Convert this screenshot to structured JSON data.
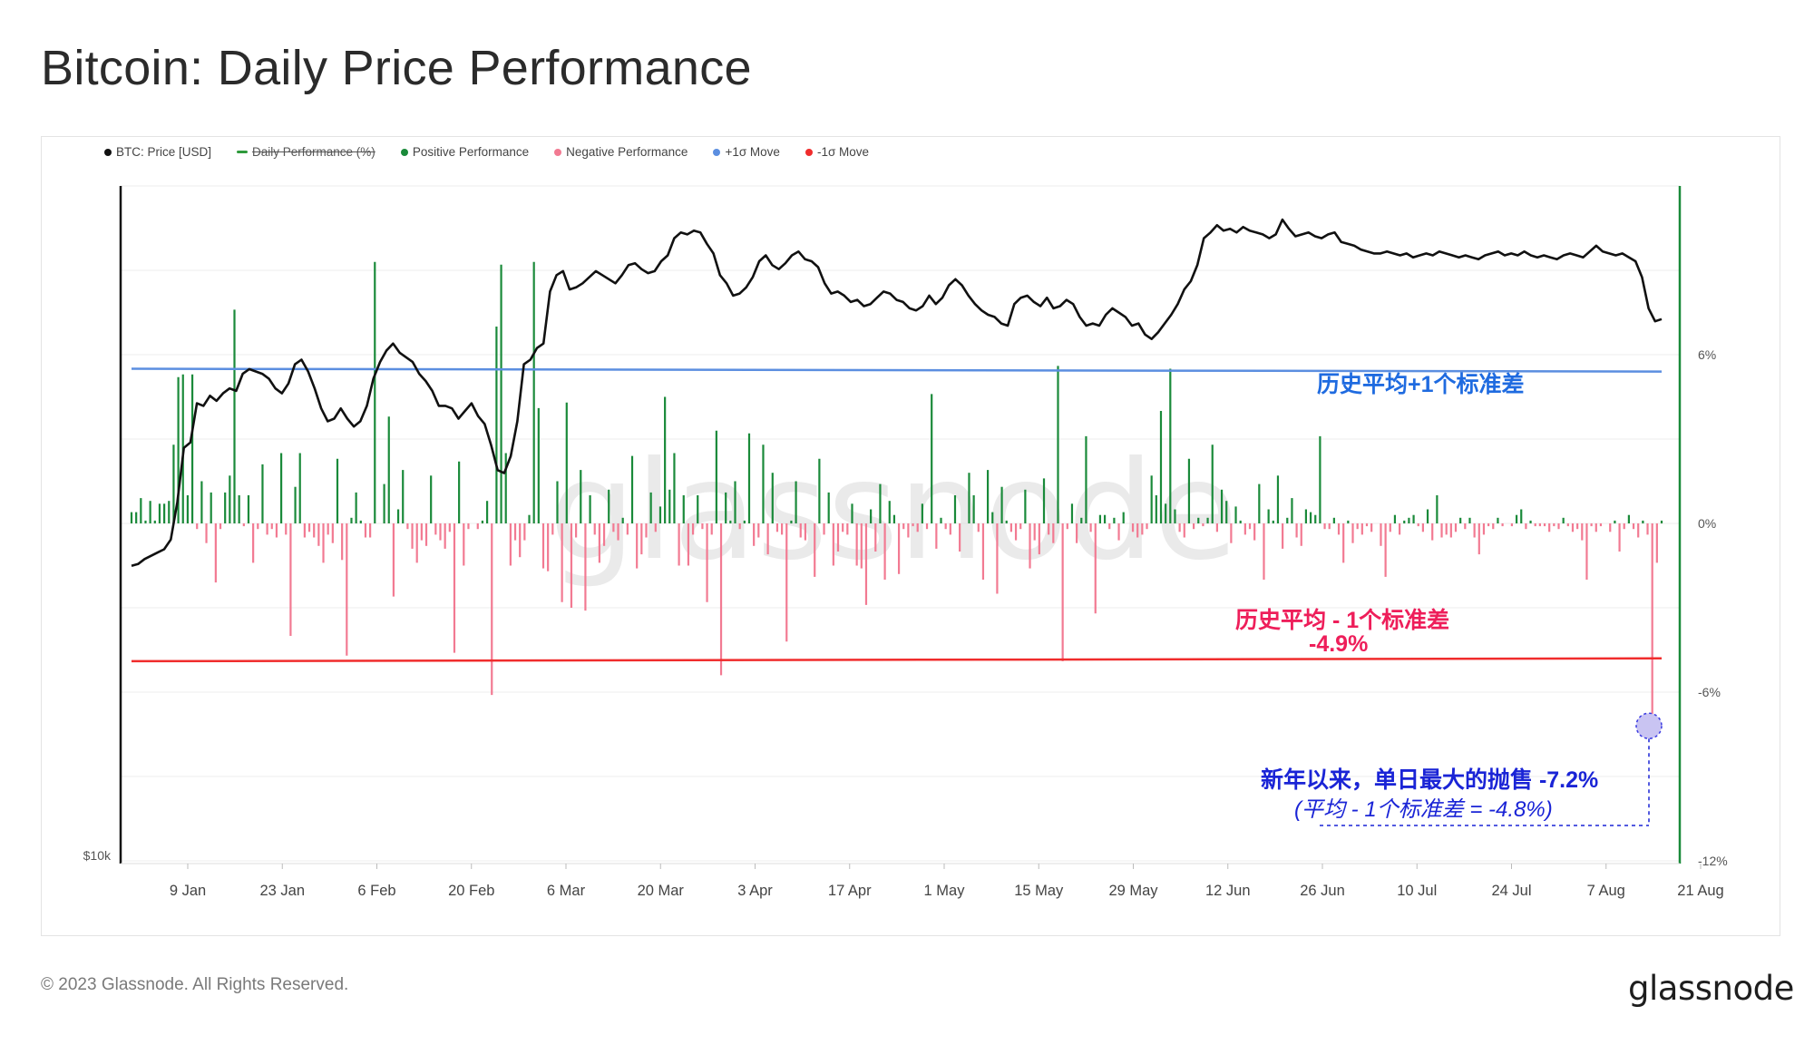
{
  "title": "Bitcoin: Daily Price Performance",
  "footer": {
    "copyright": "© 2023 Glassnode. All Rights Reserved.",
    "logo": "glassnode"
  },
  "watermark": "glassnode",
  "legend": [
    {
      "label": "BTC: Price [USD]",
      "color": "#111111",
      "disabled": false
    },
    {
      "label": "Daily Performance (%)",
      "color": "#2e9a3c",
      "disabled": true
    },
    {
      "label": "Positive Performance",
      "color": "#1a8a3a",
      "disabled": false
    },
    {
      "label": "Negative Performance",
      "color": "#f27a92",
      "disabled": false
    },
    {
      "label": "+1σ Move",
      "color": "#5b8ee0",
      "disabled": false
    },
    {
      "label": "-1σ Move",
      "color": "#f02c2c",
      "disabled": false
    }
  ],
  "annotations": {
    "plus_sigma": "历史平均+1个标准差",
    "minus_sigma_line1": "历史平均 - 1个标准差",
    "minus_sigma_line2": "-4.9%",
    "max_drop_line1": "新年以来，单日最大的抛售 -7.2%",
    "max_drop_line2": "(平均 - 1个标准差 = -4.8%)"
  },
  "chart_data": {
    "type": "bar+line",
    "title": "Bitcoin: Daily Price Performance",
    "x_tick_labels": [
      "9 Jan",
      "23 Jan",
      "6 Feb",
      "20 Feb",
      "6 Mar",
      "20 Mar",
      "3 Apr",
      "17 Apr",
      "1 May",
      "15 May",
      "29 May",
      "12 Jun",
      "26 Jun",
      "10 Jul",
      "24 Jul",
      "7 Aug",
      "21 Aug"
    ],
    "left_axis_label": "$10k",
    "right_axis_ticks": [
      {
        "label": "6%",
        "value": 6
      },
      {
        "label": "0%",
        "value": 0
      },
      {
        "label": "-6%",
        "value": -6
      },
      {
        "label": "-12%",
        "value": -12
      }
    ],
    "right_ylim": [
      -12,
      12
    ],
    "plus_sigma": 5.5,
    "minus_sigma": -4.9,
    "sigma_end": [
      5.4,
      -4.8
    ],
    "max_drop": -7.2,
    "daily_performance_pct": [
      0.4,
      0.4,
      0.9,
      0.1,
      0.8,
      0.1,
      0.7,
      0.7,
      0.8,
      2.8,
      5.2,
      5.3,
      1.0,
      5.3,
      -0.2,
      1.5,
      -0.7,
      1.1,
      -2.1,
      -0.2,
      1.1,
      1.7,
      7.6,
      1.0,
      -0.1,
      1.0,
      -1.4,
      -0.2,
      2.1,
      -0.4,
      -0.2,
      -0.5,
      2.5,
      -0.4,
      -4.0,
      1.3,
      2.5,
      -0.5,
      -0.3,
      -0.5,
      -0.8,
      -1.4,
      -0.4,
      -0.7,
      2.3,
      -1.3,
      -4.7,
      0.2,
      1.1,
      0.1,
      -0.5,
      -0.5,
      9.3,
      0.0,
      1.4,
      3.8,
      -2.6,
      0.5,
      1.9,
      -0.2,
      -0.9,
      -1.4,
      -0.6,
      -0.8,
      1.7,
      -0.4,
      -0.6,
      -0.9,
      -0.3,
      -4.6,
      2.2,
      -1.5,
      -0.2,
      0.0,
      -0.2,
      0.1,
      0.8,
      -6.1,
      7.0,
      9.2,
      2.5,
      -1.5,
      -0.6,
      -1.2,
      -0.6,
      0.3,
      9.3,
      4.1,
      -1.6,
      -1.7,
      -0.4,
      1.5,
      -2.8,
      4.3,
      -3.0,
      -0.5,
      1.9,
      -3.1,
      1.0,
      -0.4,
      -1.4,
      -0.8,
      1.2,
      -0.3,
      -0.6,
      0.2,
      -0.4,
      2.4,
      -1.6,
      -1.1,
      -0.5,
      1.1,
      -0.3,
      0.6,
      4.5,
      1.2,
      2.5,
      -1.5,
      1.0,
      -1.5,
      -0.4,
      1.0,
      -0.2,
      -2.8,
      -0.4,
      3.3,
      -5.4,
      1.1,
      0.1,
      1.5,
      -0.2,
      0.1,
      3.2,
      -0.8,
      -0.5,
      2.8,
      -1.1,
      1.8,
      -0.3,
      -0.4,
      -4.2,
      0.1,
      1.5,
      -0.5,
      -0.6,
      0.0,
      -1.9,
      2.3,
      -0.4,
      1.1,
      -1.5,
      -1.0,
      -0.3,
      -0.4,
      0.7,
      -1.5,
      -1.6,
      -2.9,
      0.5,
      -1.0,
      1.4,
      -2.0,
      0.8,
      0.3,
      -1.8,
      -0.2,
      -0.5,
      -0.1,
      -0.3,
      0.7,
      -0.2,
      4.6,
      -0.9,
      0.2,
      -0.2,
      -0.4,
      1.0,
      -1.0,
      0.0,
      1.8,
      1.0,
      -0.3,
      -2.0,
      1.9,
      0.4,
      -2.5,
      1.3,
      0.1,
      -0.3,
      -0.6,
      -0.2,
      1.2,
      -1.6,
      -0.6,
      -1.1,
      1.6,
      -0.4,
      -0.7,
      5.6,
      -4.9,
      -0.2,
      0.7,
      -0.7,
      0.2,
      3.1,
      -0.3,
      -3.2,
      0.3,
      0.3,
      -0.2,
      0.2,
      -0.6,
      0.4,
      0.0,
      -0.3,
      -0.5,
      -0.4,
      -0.2,
      1.7,
      1.0,
      4.0,
      0.7,
      5.5,
      0.5,
      -0.3,
      -0.5,
      2.3,
      -0.2,
      0.2,
      -0.1,
      0.2,
      2.8,
      -0.3,
      1.2,
      0.8,
      -0.7,
      0.6,
      0.1,
      -0.4,
      -0.2,
      -0.6,
      1.4,
      -2.0,
      0.5,
      0.1,
      1.7,
      -0.9,
      0.2,
      0.9,
      -0.5,
      -0.8,
      0.5,
      0.4,
      0.3,
      3.1,
      -0.2,
      -0.2,
      0.2,
      -0.4,
      -1.4,
      0.1,
      -0.7,
      -0.2,
      -0.4,
      -0.1,
      -0.3,
      0.0,
      -0.8,
      -1.9,
      -0.3,
      0.3,
      -0.4,
      0.1,
      0.2,
      0.3,
      -0.1,
      -0.3,
      0.5,
      -0.6,
      1.0,
      -0.5,
      -0.4,
      -0.5,
      -0.3,
      0.2,
      -0.2,
      0.2,
      -0.5,
      -1.1,
      -0.4,
      -0.1,
      -0.2,
      0.2,
      -0.1,
      0.0,
      -0.1,
      0.3,
      0.5,
      -0.2,
      0.1,
      -0.1,
      -0.1,
      -0.1,
      -0.3,
      -0.1,
      -0.2,
      0.2,
      -0.1,
      -0.3,
      -0.2,
      -0.6,
      -2.0,
      -0.1,
      -0.3,
      -0.1,
      0.0,
      -0.3,
      0.1,
      -1.0,
      -0.2,
      0.3,
      -0.2,
      -0.5,
      0.1,
      -0.4,
      -7.2,
      -1.4,
      0.1
    ],
    "btc_price_usd": [
      16900,
      16950,
      17100,
      17200,
      17300,
      17400,
      17700,
      18900,
      20800,
      21000,
      22500,
      22400,
      22800,
      22600,
      22900,
      23100,
      23000,
      23700,
      23900,
      23800,
      23700,
      23500,
      23100,
      22900,
      23300,
      24100,
      24300,
      23800,
      23100,
      22300,
      21800,
      21900,
      22300,
      21900,
      21600,
      21800,
      22400,
      23500,
      24200,
      24700,
      25000,
      24600,
      24400,
      24200,
      23700,
      23400,
      23000,
      22400,
      22400,
      22300,
      21900,
      22200,
      22500,
      22000,
      21700,
      20900,
      20000,
      19900,
      20500,
      21800,
      24100,
      24300,
      24800,
      25000,
      27400,
      28200,
      28400,
      27500,
      27600,
      27800,
      28100,
      28400,
      28200,
      28000,
      27800,
      28200,
      28700,
      28800,
      28500,
      28300,
      28400,
      28900,
      29200,
      30100,
      30400,
      30300,
      30500,
      30400,
      29800,
      29300,
      28200,
      27800,
      27200,
      27300,
      27600,
      28100,
      28900,
      29200,
      28700,
      28500,
      28800,
      29200,
      29400,
      29000,
      28900,
      28600,
      27800,
      27300,
      27400,
      27200,
      26900,
      27000,
      26700,
      26800,
      27100,
      27400,
      27300,
      27000,
      26900,
      26600,
      26500,
      26700,
      27200,
      26800,
      27100,
      27700,
      28000,
      27700,
      27200,
      26800,
      26500,
      26300,
      26200,
      25900,
      25800,
      26800,
      27100,
      27200,
      26900,
      26700,
      27100,
      26600,
      26700,
      27000,
      26800,
      26200,
      25800,
      25900,
      25800,
      26300,
      26600,
      26400,
      26200,
      25800,
      25900,
      25400,
      25200,
      25500,
      25900,
      26300,
      26800,
      27500,
      27900,
      28700,
      30100,
      30400,
      30800,
      30500,
      30600,
      30400,
      30700,
      30500,
      30400,
      30300,
      30100,
      30300,
      31100,
      30600,
      30200,
      30300,
      30400,
      30200,
      30100,
      30300,
      30400,
      29900,
      29800,
      29700,
      29500,
      29400,
      29300,
      29300,
      29400,
      29300,
      29200,
      29300,
      29100,
      29200,
      29300,
      29200,
      29400,
      29300,
      29200,
      29100,
      29200,
      29100,
      29000,
      29200,
      29300,
      29400,
      29200,
      29300,
      29200,
      29400,
      29200,
      29100,
      29200,
      29100,
      29000,
      29200,
      29300,
      29200,
      29100,
      29400,
      29700,
      29400,
      29300,
      29200,
      29300,
      29100,
      28900,
      28100,
      26600,
      26000,
      26100
    ],
    "yellow_marker": {
      "x": "17 Aug",
      "value": -7.2
    }
  }
}
